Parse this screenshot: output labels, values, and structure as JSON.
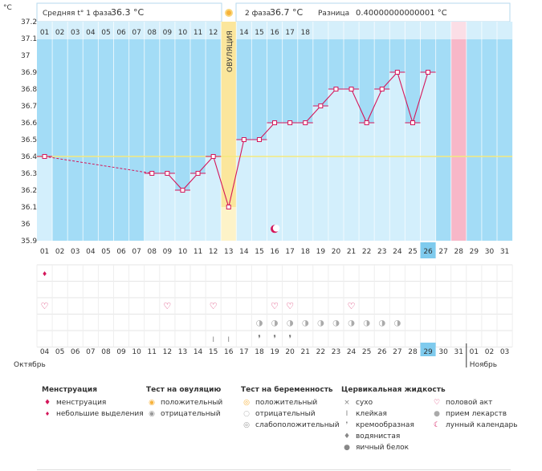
{
  "header": {
    "unit": "°C",
    "phase1_label": "Средняя t° 1 фаза",
    "phase1_value": "36.3 °C",
    "phase2_label": "2 фаза",
    "phase2_value": "36.7 °C",
    "diff_label": "Разница",
    "diff_value": "0.40000000000001 °C"
  },
  "ovulation_label": "ОВУЛЯЦИЯ",
  "chart_data": {
    "type": "line",
    "title": "",
    "ylabel": "°C",
    "ylim": [
      35.9,
      37.2
    ],
    "y_ticks": [
      "35.9",
      "36",
      "36.1",
      "36.2",
      "36.3",
      "36.4",
      "36.5",
      "36.6",
      "36.7",
      "36.8",
      "36.9",
      "37",
      "37.1",
      "37.2"
    ],
    "cycle_days": [
      "01",
      "02",
      "03",
      "04",
      "05",
      "06",
      "07",
      "08",
      "09",
      "10",
      "11",
      "12",
      "13",
      "14",
      "15",
      "16",
      "17",
      "18",
      "19",
      "20",
      "21",
      "22",
      "23",
      "24",
      "25",
      "26",
      "27",
      "28",
      "29",
      "30",
      "31"
    ],
    "top_days": [
      "01",
      "02",
      "03",
      "04",
      "05",
      "06",
      "07",
      "08",
      "09",
      "10",
      "11",
      "12",
      "13",
      "14",
      "15",
      "16",
      "17",
      "18"
    ],
    "calendar_dates": [
      "04",
      "05",
      "06",
      "07",
      "08",
      "09",
      "10",
      "11",
      "12",
      "13",
      "14",
      "15",
      "16",
      "17",
      "18",
      "19",
      "20",
      "21",
      "22",
      "23",
      "24",
      "25",
      "26",
      "27",
      "28",
      "29",
      "30",
      "31",
      "01",
      "02",
      "03"
    ],
    "weekend_dates_idx": [
      1,
      2,
      8,
      9,
      15,
      16,
      22,
      23,
      29,
      30
    ],
    "highlight_cycle_day": "26",
    "highlight_date": "29",
    "period_day_idx": 27,
    "ovulation_day": "13",
    "cover_line": 36.4,
    "series": [
      {
        "name": "Базальная температура",
        "x": [
          1,
          8,
          9,
          10,
          11,
          12,
          13,
          14,
          15,
          16,
          17,
          18,
          19,
          20,
          21,
          22,
          23,
          24,
          25,
          26
        ],
        "values": [
          36.4,
          36.3,
          36.3,
          36.2,
          36.3,
          36.4,
          36.1,
          36.5,
          36.5,
          36.6,
          36.6,
          36.6,
          36.7,
          36.8,
          36.8,
          36.6,
          36.8,
          36.9,
          36.6,
          36.9
        ]
      }
    ],
    "dashed_gap": [
      1,
      8
    ]
  },
  "months": {
    "left": "Октябрь",
    "right": "Ноябрь"
  },
  "legend": {
    "menstruation": {
      "title": "Менструация",
      "items": [
        "менструация",
        "небольшие выделения"
      ]
    },
    "ovulation_test": {
      "title": "Тест на овуляцию",
      "items": [
        "положительный",
        "отрицательный"
      ]
    },
    "pregnancy_test": {
      "title": "Тест на беременность",
      "items": [
        "положительный",
        "отрицательный",
        "слабоположительный"
      ]
    },
    "cervical": {
      "title": "Цервикальная жидкость",
      "items": [
        "сухо",
        "клейкая",
        "кремообразная",
        "водянистая",
        "яичный белок"
      ]
    },
    "other": {
      "items": [
        "половой акт",
        "прием лекарств",
        "лунный календарь"
      ]
    }
  },
  "colors": {
    "sky": "#a3dcf6",
    "bar": "#d3effc",
    "ovul": "#fbe69c",
    "pink": "#f7b7c8",
    "line": "#d4165a",
    "cover": "#f4ea7e",
    "highlight": "#7fcbee"
  }
}
